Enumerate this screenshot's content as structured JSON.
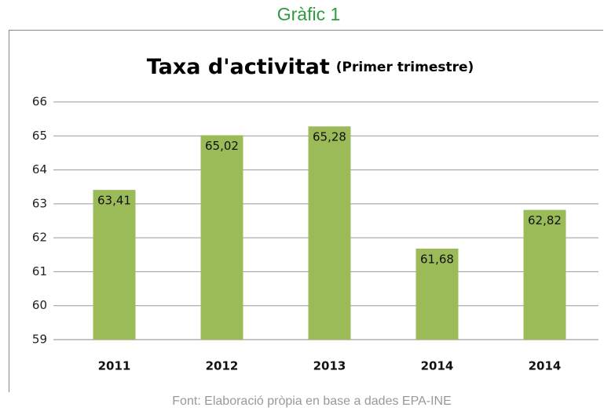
{
  "heading": "Gràfic 1",
  "chart_data": {
    "type": "bar",
    "title": "Taxa d'activitat",
    "subtitle": "(Primer trimestre)",
    "categories": [
      "2011",
      "2012",
      "2013",
      "2014",
      "2014"
    ],
    "values": [
      63.41,
      65.02,
      65.28,
      61.68,
      62.82
    ],
    "value_labels": [
      "63,41",
      "65,02",
      "65,28",
      "61,68",
      "62,82"
    ],
    "color": "#9bbb59",
    "ylim": [
      59,
      66
    ],
    "yticks": [
      59,
      60,
      61,
      62,
      63,
      64,
      65,
      66
    ],
    "grid": true
  },
  "source": "Font: Elaboració pròpia en base a dades EPA-INE"
}
